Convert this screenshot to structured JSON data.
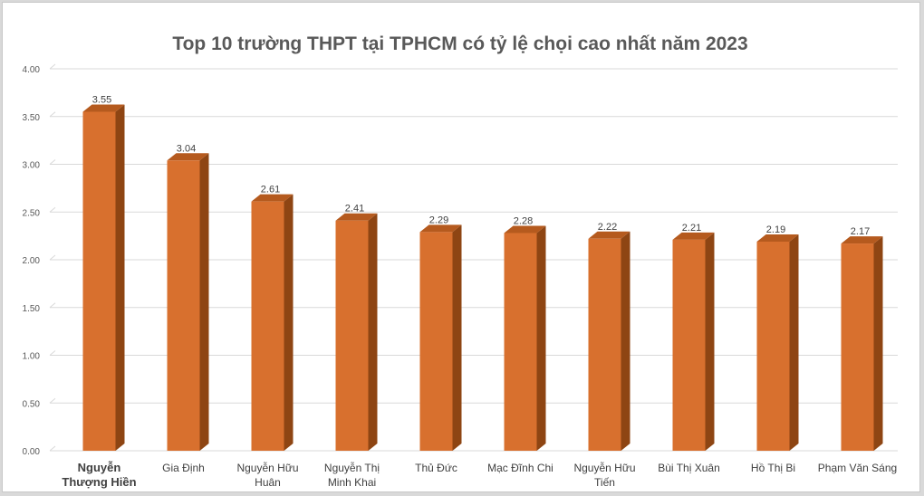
{
  "chart_data": {
    "type": "bar",
    "title": "Top 10 trường THPT tại TPHCM có tỷ lệ chọi cao nhất năm 2023",
    "xlabel": "",
    "ylabel": "",
    "categories": [
      [
        "Nguyễn",
        "Thượng Hiền"
      ],
      [
        "Gia Định"
      ],
      [
        "Nguyễn Hữu",
        "Huân"
      ],
      [
        "Nguyễn Thị",
        "Minh Khai"
      ],
      [
        "Thủ Đức"
      ],
      [
        "Mạc Đĩnh Chi"
      ],
      [
        "Nguyễn Hữu",
        "Tiến"
      ],
      [
        "Bùi Thị Xuân"
      ],
      [
        "Hồ Thị Bi"
      ],
      [
        "Phạm Văn Sáng"
      ]
    ],
    "values": [
      3.55,
      3.04,
      2.61,
      2.41,
      2.29,
      2.28,
      2.22,
      2.21,
      2.19,
      2.17
    ],
    "value_labels": [
      "3.55",
      "3.04",
      "2.61",
      "2.41",
      "2.29",
      "2.28",
      "2.22",
      "2.21",
      "2.19",
      "2.17"
    ],
    "ylim": [
      0,
      4
    ],
    "yticks": [
      0,
      0.5,
      1,
      1.5,
      2,
      2.5,
      3,
      3.5,
      4
    ],
    "ytick_labels": [
      "0.00",
      "0.50",
      "1.00",
      "1.50",
      "2.00",
      "2.50",
      "3.00",
      "3.50",
      "4.00"
    ],
    "grid": true,
    "legend": "none",
    "bar_style": "3d",
    "colors": {
      "bar_front": "#d8702e",
      "bar_side": "#8e4513",
      "bar_top": "#b55a1e",
      "gridline": "#d9d9d9",
      "text": "#595959"
    }
  }
}
